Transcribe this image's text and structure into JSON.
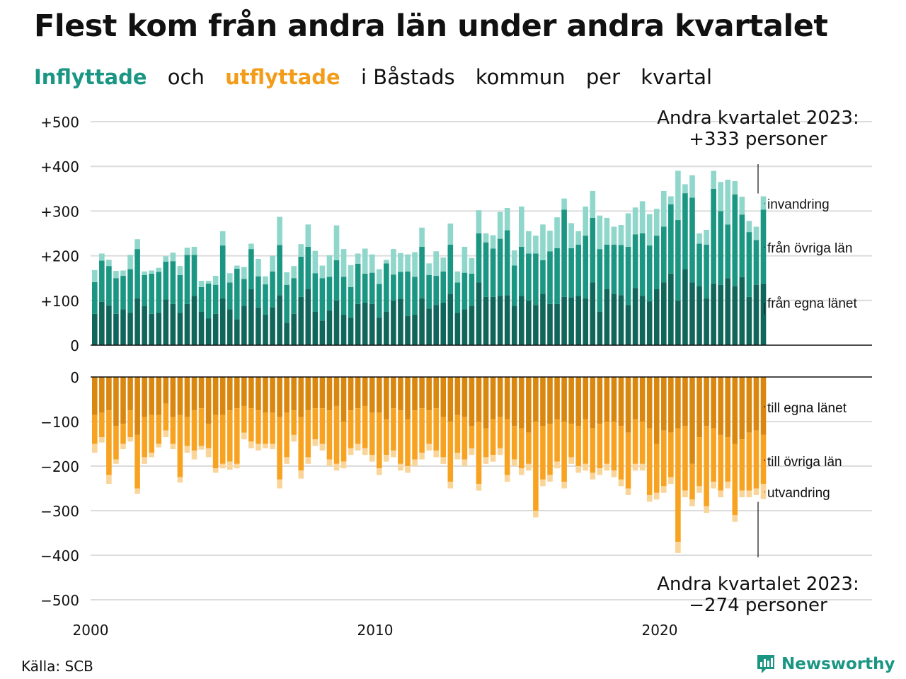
{
  "title": "Flest kom från andra län under andra kvartalet",
  "subtitle": {
    "part1": "Inflyttade",
    "part2": "och",
    "part3": "utflyttade",
    "part4": "i Båstads",
    "part5": "kommun",
    "part6": "per",
    "part7": "kvartal"
  },
  "annotations": {
    "top_line1": "Andra kvartalet 2023:",
    "top_line2": "+333 personer",
    "bottom_line1": "Andra kvartalet 2023:",
    "bottom_line2": "−274 personer"
  },
  "source": "Källa: SCB",
  "brand": "Newsworthy",
  "colors": {
    "in_own": "#11665b",
    "in_other": "#1a9683",
    "in_abroad": "#8fd6cb",
    "out_own": "#d9870f",
    "out_other": "#f7a321",
    "out_abroad": "#fad59a"
  },
  "chart_data": {
    "type": "bar",
    "stacked": true,
    "x_start": "2000 Q1",
    "x_end": "2023 Q2",
    "x_ticks": [
      "2000",
      "2010",
      "2020"
    ],
    "y_ticks_top": [
      "+500",
      "+400",
      "+300",
      "+200",
      "+100",
      "0"
    ],
    "y_ticks_bottom": [
      "0",
      "−100",
      "−200",
      "−300",
      "−400",
      "−500"
    ],
    "ylim_top": [
      0,
      500
    ],
    "ylim_bottom": [
      -500,
      0
    ],
    "inflow": {
      "labels": [
        "invandring",
        "från övriga län",
        "från egna länet"
      ],
      "own_county": [
        70,
        97,
        89,
        70,
        80,
        72,
        105,
        87,
        70,
        72,
        102,
        92,
        72,
        92,
        110,
        75,
        60,
        70,
        105,
        80,
        58,
        88,
        125,
        84,
        68,
        85,
        112,
        50,
        70,
        108,
        125,
        75,
        55,
        78,
        100,
        68,
        62,
        92,
        95,
        92,
        62,
        75,
        100,
        104,
        65,
        68,
        105,
        82,
        90,
        95,
        115,
        72,
        80,
        88,
        140,
        108,
        108,
        110,
        112,
        88,
        110,
        100,
        90,
        115,
        92,
        92,
        108,
        107,
        110,
        105,
        140,
        75,
        125,
        115,
        112,
        90,
        128,
        110,
        98,
        125,
        140,
        160,
        100,
        170,
        140,
        132,
        105,
        138,
        135,
        150,
        132,
        152,
        108,
        135,
        138
      ],
      "other_county": [
        71,
        92,
        88,
        80,
        75,
        98,
        110,
        70,
        90,
        92,
        85,
        96,
        85,
        110,
        92,
        55,
        78,
        65,
        118,
        60,
        113,
        60,
        90,
        70,
        68,
        80,
        112,
        85,
        80,
        90,
        95,
        86,
        95,
        75,
        90,
        85,
        68,
        90,
        65,
        70,
        75,
        108,
        58,
        60,
        100,
        85,
        115,
        75,
        65,
        70,
        110,
        68,
        82,
        72,
        110,
        122,
        108,
        128,
        145,
        90,
        110,
        105,
        115,
        75,
        118,
        125,
        195,
        110,
        115,
        140,
        145,
        140,
        100,
        110,
        112,
        130,
        120,
        140,
        125,
        120,
        125,
        155,
        180,
        170,
        190,
        95,
        120,
        212,
        165,
        120,
        205,
        140,
        145,
        100,
        165
      ],
      "abroad": [
        27,
        16,
        14,
        16,
        12,
        32,
        22,
        8,
        7,
        9,
        12,
        19,
        20,
        16,
        18,
        14,
        6,
        20,
        32,
        21,
        7,
        27,
        12,
        39,
        18,
        35,
        63,
        28,
        27,
        28,
        50,
        50,
        28,
        48,
        78,
        62,
        49,
        23,
        56,
        41,
        33,
        8,
        57,
        42,
        38,
        55,
        43,
        26,
        55,
        31,
        47,
        25,
        58,
        35,
        52,
        20,
        30,
        60,
        50,
        34,
        90,
        50,
        40,
        80,
        46,
        69,
        25,
        56,
        30,
        65,
        60,
        75,
        60,
        40,
        45,
        75,
        60,
        72,
        70,
        60,
        80,
        18,
        110,
        20,
        50,
        23,
        33,
        40,
        65,
        100,
        30,
        40,
        25,
        30,
        30
      ],
      "last_total": 333
    },
    "outflow": {
      "labels": [
        "till egna länet",
        "till övriga län",
        "utvandring"
      ],
      "own_county": [
        85,
        80,
        75,
        110,
        105,
        75,
        130,
        90,
        85,
        85,
        60,
        90,
        85,
        90,
        75,
        70,
        105,
        85,
        85,
        75,
        70,
        65,
        70,
        75,
        80,
        80,
        90,
        80,
        75,
        90,
        75,
        70,
        70,
        75,
        65,
        100,
        75,
        70,
        65,
        80,
        80,
        95,
        70,
        75,
        95,
        75,
        70,
        75,
        70,
        90,
        100,
        85,
        90,
        110,
        100,
        115,
        95,
        90,
        95,
        110,
        115,
        125,
        100,
        110,
        105,
        95,
        100,
        105,
        110,
        95,
        115,
        105,
        100,
        100,
        110,
        125,
        95,
        100,
        115,
        150,
        120,
        125,
        115,
        110,
        195,
        135,
        110,
        115,
        130,
        135,
        150,
        140,
        125,
        120,
        130
      ],
      "other_county": [
        65,
        55,
        145,
        75,
        45,
        60,
        120,
        90,
        85,
        65,
        60,
        60,
        140,
        65,
        90,
        85,
        55,
        120,
        110,
        115,
        125,
        60,
        75,
        75,
        70,
        70,
        140,
        100,
        55,
        120,
        105,
        70,
        80,
        110,
        130,
        90,
        85,
        80,
        95,
        95,
        125,
        80,
        95,
        120,
        105,
        110,
        100,
        75,
        95,
        90,
        135,
        85,
        95,
        50,
        140,
        65,
        80,
        70,
        125,
        75,
        90,
        70,
        200,
        120,
        115,
        95,
        135,
        75,
        90,
        100,
        100,
        100,
        95,
        110,
        120,
        125,
        100,
        95,
        150,
        110,
        125,
        100,
        255,
        145,
        80,
        110,
        180,
        120,
        125,
        100,
        160,
        115,
        130,
        130,
        110
      ],
      "abroad": [
        20,
        12,
        20,
        10,
        12,
        10,
        12,
        15,
        10,
        8,
        15,
        12,
        12,
        15,
        20,
        8,
        20,
        10,
        10,
        18,
        10,
        15,
        15,
        15,
        10,
        12,
        20,
        15,
        15,
        18,
        15,
        15,
        15,
        15,
        15,
        15,
        15,
        15,
        15,
        15,
        15,
        15,
        15,
        15,
        15,
        15,
        15,
        15,
        15,
        15,
        15,
        15,
        15,
        15,
        15,
        15,
        15,
        15,
        15,
        15,
        15,
        15,
        15,
        15,
        15,
        15,
        15,
        15,
        15,
        15,
        15,
        15,
        15,
        15,
        15,
        15,
        15,
        15,
        15,
        15,
        15,
        15,
        25,
        15,
        15,
        15,
        15,
        15,
        15,
        15,
        15,
        15,
        15,
        15,
        34
      ],
      "last_total": -274
    }
  }
}
